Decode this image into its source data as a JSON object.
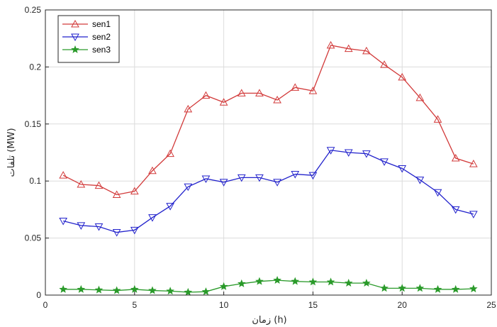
{
  "chart_data": {
    "type": "line",
    "title": "",
    "xlabel": "زمان (h)",
    "ylabel": "تلفات (MW)",
    "xlim": [
      0,
      25
    ],
    "ylim": [
      0,
      0.25
    ],
    "x_ticks": [
      0,
      5,
      10,
      15,
      20,
      25
    ],
    "y_ticks": [
      0,
      0.05,
      0.1,
      0.15,
      0.2,
      0.25
    ],
    "x_tick_labels": [
      "0",
      "5",
      "10",
      "15",
      "20",
      "25"
    ],
    "y_tick_labels": [
      "0",
      "0.05",
      "0.1",
      "0.15",
      "0.2",
      "0.25"
    ],
    "grid": true,
    "legend_position": "top-left",
    "x": [
      1,
      2,
      3,
      4,
      5,
      6,
      7,
      8,
      9,
      10,
      11,
      12,
      13,
      14,
      15,
      16,
      17,
      18,
      19,
      20,
      21,
      22,
      23,
      24
    ],
    "series": [
      {
        "name": "sen1",
        "color": "#d23a3a",
        "marker": "triangle-up",
        "values": [
          0.105,
          0.097,
          0.096,
          0.088,
          0.091,
          0.109,
          0.124,
          0.163,
          0.175,
          0.169,
          0.177,
          0.177,
          0.171,
          0.182,
          0.179,
          0.219,
          0.216,
          0.214,
          0.202,
          0.191,
          0.173,
          0.154,
          0.12,
          0.115
        ]
      },
      {
        "name": "sen2",
        "color": "#2222cc",
        "marker": "triangle-down",
        "values": [
          0.065,
          0.061,
          0.06,
          0.055,
          0.057,
          0.068,
          0.078,
          0.095,
          0.102,
          0.099,
          0.103,
          0.103,
          0.099,
          0.106,
          0.105,
          0.127,
          0.125,
          0.124,
          0.117,
          0.111,
          0.101,
          0.09,
          0.075,
          0.071
        ]
      },
      {
        "name": "sen3",
        "color": "#2a9a2a",
        "marker": "star",
        "values": [
          0.005,
          0.005,
          0.0045,
          0.004,
          0.005,
          0.004,
          0.0035,
          0.0025,
          0.003,
          0.0075,
          0.01,
          0.012,
          0.013,
          0.012,
          0.0115,
          0.0115,
          0.0105,
          0.0105,
          0.006,
          0.006,
          0.006,
          0.005,
          0.005,
          0.0055
        ]
      }
    ]
  }
}
